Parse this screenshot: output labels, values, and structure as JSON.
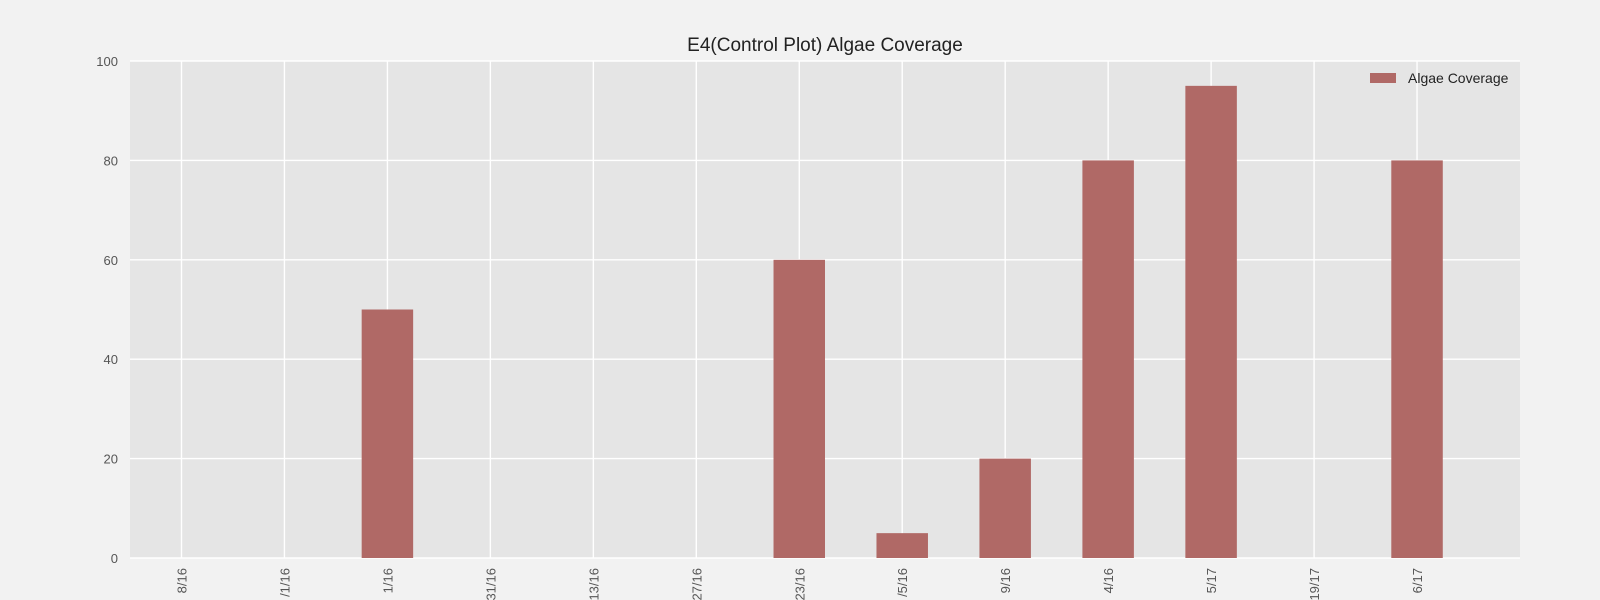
{
  "chart_data": {
    "type": "bar",
    "title": "E4(Control Plot) Algae Coverage",
    "xlabel": "",
    "ylabel": "",
    "categories": [
      "8/16",
      "/1/16",
      "1/16",
      "31/16",
      "13/16",
      "27/16",
      "23/16",
      "/5/16",
      "9/16",
      "4/16",
      "5/17",
      "19/17",
      "6/17"
    ],
    "series": [
      {
        "name": "Algae Coverage",
        "values": [
          0,
          0,
          50,
          0,
          0,
          0,
          60,
          5,
          20,
          80,
          95,
          0,
          80
        ]
      }
    ],
    "ylim": [
      0,
      100
    ],
    "yticks": [
      "0",
      "20",
      "40",
      "60",
      "80",
      "100"
    ],
    "grid": true,
    "legend": "top-right",
    "colors": {
      "bar": "#b06966",
      "plot_bg": "#e5e5e5",
      "grid": "#ffffff",
      "page_bg": "#f2f2f2"
    }
  }
}
